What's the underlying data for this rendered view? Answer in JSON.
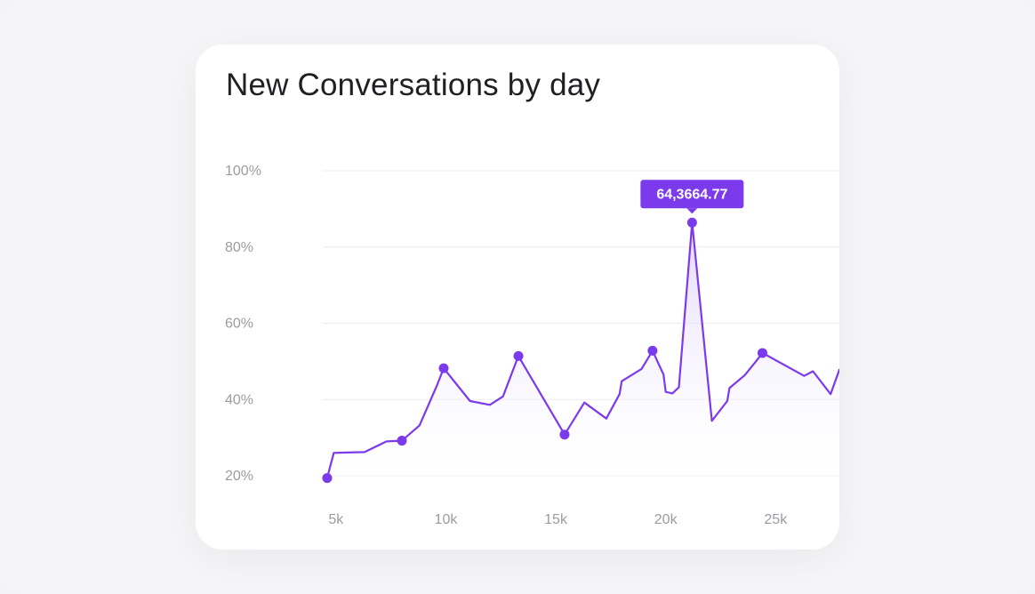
{
  "chart_data": {
    "type": "area",
    "title": "New Conversations by day",
    "xlabel": "",
    "ylabel": "",
    "x_ticks": [
      5,
      10,
      15,
      20,
      25
    ],
    "x_tick_labels": [
      "5k",
      "10k",
      "15k",
      "20k",
      "25k"
    ],
    "y_ticks": [
      20,
      40,
      60,
      80,
      100
    ],
    "y_tick_labels": [
      "20%",
      "40%",
      "60%",
      "80%",
      "100%"
    ],
    "xlim": [
      4.4,
      27.9
    ],
    "ylim": [
      20,
      100
    ],
    "grid": true,
    "line_color": "#7c3aed",
    "fill_color": "#ede6fb",
    "series": [
      {
        "values": [
          [
            4.6,
            19.4
          ],
          [
            4.9,
            26.0
          ],
          [
            6.3,
            26.2
          ],
          [
            7.3,
            29.0
          ],
          [
            8.0,
            29.2
          ],
          [
            8.8,
            33.2
          ],
          [
            9.6,
            43.8
          ],
          [
            9.9,
            48.2
          ],
          [
            11.1,
            39.6
          ],
          [
            12.0,
            38.6
          ],
          [
            12.6,
            40.8
          ],
          [
            13.3,
            51.4
          ],
          [
            15.4,
            30.8
          ],
          [
            16.3,
            39.2
          ],
          [
            17.3,
            35.0
          ],
          [
            17.9,
            41.4
          ],
          [
            18.0,
            44.8
          ],
          [
            18.9,
            48.0
          ],
          [
            19.4,
            52.8
          ],
          [
            19.8,
            47.8
          ],
          [
            19.9,
            46.6
          ],
          [
            20.0,
            42.0
          ],
          [
            20.3,
            41.6
          ],
          [
            20.6,
            43.2
          ],
          [
            21.2,
            86.4
          ],
          [
            22.1,
            34.4
          ],
          [
            22.8,
            39.6
          ],
          [
            22.9,
            43.0
          ],
          [
            23.6,
            46.4
          ],
          [
            24.1,
            50.0
          ],
          [
            24.4,
            52.2
          ],
          [
            26.3,
            46.2
          ],
          [
            26.7,
            47.4
          ],
          [
            27.5,
            41.4
          ],
          [
            27.9,
            47.8
          ]
        ],
        "markers": [
          [
            4.6,
            19.4
          ],
          [
            8.0,
            29.2
          ],
          [
            9.9,
            48.2
          ],
          [
            13.3,
            51.4
          ],
          [
            15.4,
            30.8
          ],
          [
            19.4,
            52.8
          ],
          [
            21.2,
            86.4
          ],
          [
            24.4,
            52.2
          ]
        ]
      }
    ],
    "tooltip": {
      "x": 21.2,
      "y": 86.4,
      "text": "64,3664.77"
    }
  }
}
